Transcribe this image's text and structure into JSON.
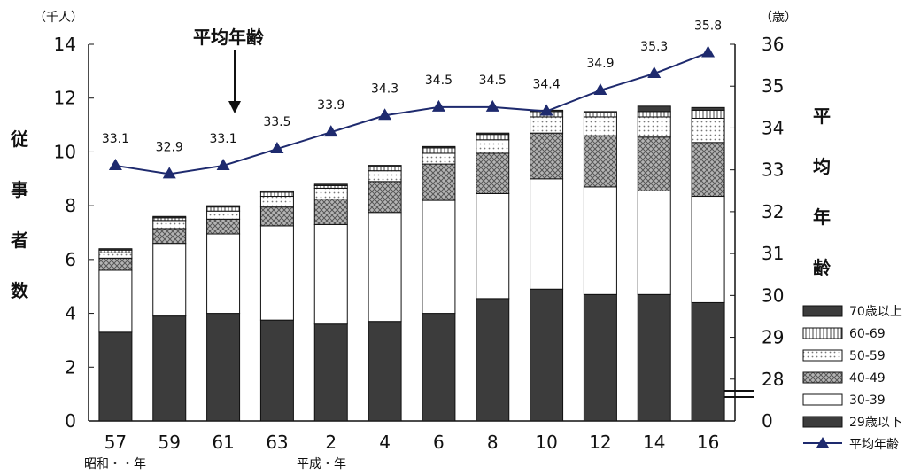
{
  "chart_data": {
    "type": "bar",
    "stacked": true,
    "units": {
      "left": "（千人）",
      "right": "（歳）"
    },
    "ylabel_left": "従事者数",
    "ylabel_right": "平均年齢",
    "categories": [
      "57",
      "59",
      "61",
      "63",
      "2",
      "4",
      "6",
      "8",
      "10",
      "12",
      "14",
      "16"
    ],
    "era_labels": {
      "showa": "昭和・・年",
      "heisei": "平成・年"
    },
    "y_left": {
      "range": [
        0,
        14
      ],
      "ticks": [
        "0",
        "2",
        "4",
        "6",
        "8",
        "10",
        "12",
        "14"
      ]
    },
    "y_right": {
      "ticks": [
        "0",
        "28",
        "29",
        "30",
        "31",
        "32",
        "33",
        "34",
        "35",
        "36"
      ]
    },
    "series": [
      {
        "name": "29歳以下",
        "values": [
          3.3,
          3.9,
          4.0,
          3.75,
          3.6,
          3.7,
          4.0,
          4.55,
          4.9,
          4.7,
          4.7,
          4.4
        ],
        "color": "#3c3c3c",
        "pattern": "solid"
      },
      {
        "name": "30-39",
        "values": [
          2.3,
          2.7,
          2.95,
          3.5,
          3.7,
          4.05,
          4.2,
          3.9,
          4.1,
          4.0,
          3.85,
          3.95
        ],
        "color": "#ffffff",
        "pattern": "blank"
      },
      {
        "name": "40-49",
        "values": [
          0.45,
          0.55,
          0.55,
          0.7,
          0.95,
          1.15,
          1.35,
          1.5,
          1.7,
          1.9,
          2.0,
          2.0
        ],
        "color": "#a0a0a0",
        "pattern": "cross"
      },
      {
        "name": "50-59",
        "values": [
          0.2,
          0.3,
          0.3,
          0.4,
          0.4,
          0.4,
          0.4,
          0.5,
          0.6,
          0.7,
          0.75,
          0.9
        ],
        "color": "#f2f2f2",
        "pattern": "dots"
      },
      {
        "name": "60-69",
        "values": [
          0.1,
          0.1,
          0.15,
          0.15,
          0.1,
          0.15,
          0.2,
          0.2,
          0.2,
          0.15,
          0.2,
          0.3
        ],
        "color": "#ffffff",
        "pattern": "vlines"
      },
      {
        "name": "70歳以上",
        "values": [
          0.05,
          0.05,
          0.05,
          0.05,
          0.05,
          0.05,
          0.05,
          0.05,
          0.05,
          0.05,
          0.2,
          0.1
        ],
        "color": "#3c3c3c",
        "pattern": "solid"
      }
    ],
    "line_series": {
      "name": "平均年齢",
      "values": [
        33.1,
        32.9,
        33.1,
        33.5,
        33.9,
        34.3,
        34.5,
        34.5,
        34.4,
        34.9,
        35.3,
        35.8
      ],
      "labels": [
        "33.1",
        "32.9",
        "33.1",
        "33.5",
        "33.9",
        "34.3",
        "34.5",
        "34.5",
        "34.4",
        "34.9",
        "35.3",
        "35.8"
      ],
      "color": "#1e2a6e",
      "axis_range": [
        27,
        36
      ]
    },
    "annotation": "平均年齢",
    "legend_position": "right",
    "grid": false
  }
}
